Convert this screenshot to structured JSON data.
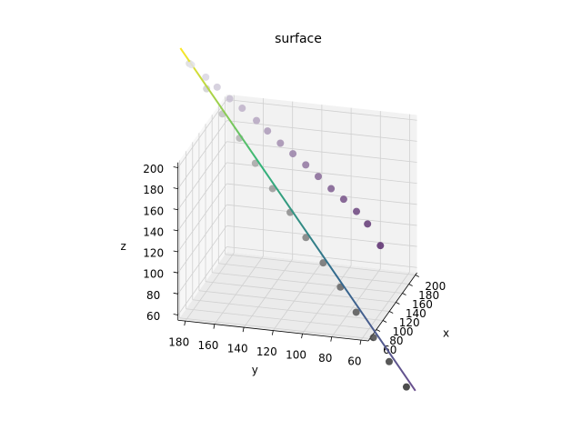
{
  "chart_data": {
    "type": "scatter3d",
    "title": "surface",
    "xlabel": "x",
    "ylabel": "y",
    "zlabel": "z",
    "xlim": [
      55,
      205
    ],
    "ylim": [
      55,
      185
    ],
    "zlim": [
      55,
      205
    ],
    "xticks": [
      60,
      80,
      100,
      120,
      140,
      160,
      180,
      200
    ],
    "yticks": [
      60,
      80,
      100,
      120,
      140,
      160,
      180
    ],
    "zticks": [
      60,
      80,
      100,
      120,
      140,
      160,
      180,
      200
    ],
    "grid": true,
    "series": [
      {
        "kind": "scatter",
        "color": [
          "#dcdcdc",
          "#2e2e2e"
        ],
        "x": [
          90,
          98,
          106,
          114,
          122,
          130,
          139,
          147,
          155,
          163,
          171,
          179,
          187,
          195
        ],
        "y": [
          185,
          175,
          166,
          156,
          147,
          137,
          127,
          118,
          108,
          98,
          89,
          79,
          70,
          60
        ],
        "z": [
          284,
          258,
          232,
          207,
          181,
          155,
          130,
          104,
          78,
          53,
          27,
          1,
          -24,
          -50
        ]
      },
      {
        "kind": "line",
        "color": [
          "#fde725",
          "#35b779",
          "#31688e",
          "#6b4f8e"
        ],
        "x": [
          85,
          200
        ],
        "y": [
          190,
          55
        ],
        "z": [
          300,
          -55
        ]
      },
      {
        "kind": "scatter",
        "color": [
          "#e2e2ea",
          "#5a2d6e"
        ],
        "x": [
          92,
          100,
          108,
          115,
          122,
          130,
          137,
          145,
          152,
          160,
          167,
          175,
          182,
          190,
          197,
          205
        ],
        "y": [
          184,
          176,
          170,
          163,
          156,
          148,
          142,
          135,
          128,
          121,
          114,
          107,
          100,
          93,
          87,
          80
        ],
        "z": [
          282,
          268,
          256,
          243,
          232,
          218,
          206,
          192,
          180,
          167,
          154,
          140,
          128,
          114,
          100,
          77
        ]
      }
    ]
  }
}
